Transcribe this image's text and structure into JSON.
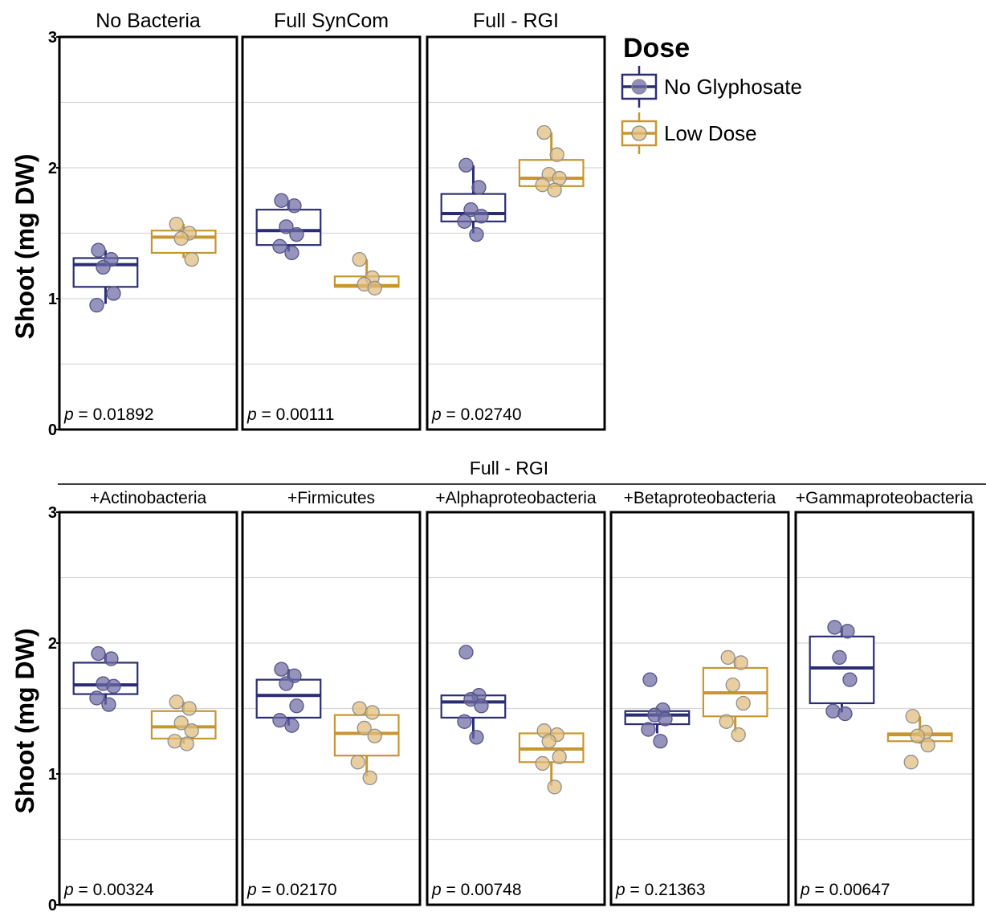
{
  "chart_data": [
    {
      "type": "box",
      "ylabel": "Shoot (mg DW)",
      "yticks": [
        "0",
        "1",
        "2",
        "3"
      ],
      "ylim": [
        0,
        3
      ],
      "grid": true,
      "panel_group_title": "",
      "legend": {
        "title": "Dose",
        "placement": "right",
        "entries": [
          {
            "name": "No Glyphosate",
            "color": "#2b2d74"
          },
          {
            "name": "Low Dose",
            "color": "#c8962e"
          }
        ]
      },
      "panels": [
        {
          "title": "No Bacteria",
          "p_label": "p",
          "p_text": " = 0.01892",
          "groups": [
            {
              "dose": "No Glyphosate",
              "color": "#2b2d74",
              "fill": "#6d6aa3",
              "box": {
                "whisker_low": 0.96,
                "q1": 1.09,
                "median": 1.26,
                "q3": 1.31,
                "whisker_high": 1.37
              },
              "points": [
                1.37,
                1.3,
                1.24,
                1.04,
                0.95
              ]
            },
            {
              "dose": "Low Dose",
              "color": "#c8962e",
              "fill": "#e1bd7b",
              "box": {
                "whisker_low": 1.31,
                "q1": 1.35,
                "median": 1.47,
                "q3": 1.52,
                "whisker_high": 1.57
              },
              "points": [
                1.57,
                1.5,
                1.46,
                1.3
              ]
            }
          ]
        },
        {
          "title": "Full SynCom",
          "p_label": "p",
          "p_text": " = 0.00111",
          "groups": [
            {
              "dose": "No Glyphosate",
              "color": "#2b2d74",
              "fill": "#6d6aa3",
              "box": {
                "whisker_low": 1.36,
                "q1": 1.41,
                "median": 1.52,
                "q3": 1.68,
                "whisker_high": 1.75
              },
              "points": [
                1.75,
                1.71,
                1.55,
                1.49,
                1.4,
                1.35
              ]
            },
            {
              "dose": "Low Dose",
              "color": "#c8962e",
              "fill": "#e1bd7b",
              "box": {
                "whisker_low": 1.09,
                "q1": 1.09,
                "median": 1.1,
                "q3": 1.17,
                "whisker_high": 1.3
              },
              "points": [
                1.3,
                1.16,
                1.11,
                1.08
              ]
            }
          ]
        },
        {
          "title": "Full - RGI",
          "p_label": "p",
          "p_text": " = 0.02740",
          "groups": [
            {
              "dose": "No Glyphosate",
              "color": "#2b2d74",
              "fill": "#6d6aa3",
              "box": {
                "whisker_low": 1.5,
                "q1": 1.59,
                "median": 1.65,
                "q3": 1.8,
                "whisker_high": 2.02
              },
              "points": [
                2.02,
                1.85,
                1.68,
                1.63,
                1.59,
                1.49
              ]
            },
            {
              "dose": "Low Dose",
              "color": "#c8962e",
              "fill": "#e1bd7b",
              "box": {
                "whisker_low": 1.84,
                "q1": 1.86,
                "median": 1.92,
                "q3": 2.06,
                "whisker_high": 2.27
              },
              "points": [
                2.27,
                2.1,
                1.95,
                1.92,
                1.87,
                1.83
              ]
            }
          ]
        }
      ]
    },
    {
      "type": "box",
      "ylabel": "Shoot (mg DW)",
      "yticks": [
        "0",
        "1",
        "2",
        "3"
      ],
      "ylim": [
        0,
        3
      ],
      "grid": true,
      "panel_group_title": "Full - RGI",
      "panels": [
        {
          "title": "+Actinobacteria",
          "p_label": "p",
          "p_text": " = 0.00324",
          "groups": [
            {
              "dose": "No Glyphosate",
              "color": "#2b2d74",
              "fill": "#6d6aa3",
              "box": {
                "whisker_low": 1.53,
                "q1": 1.61,
                "median": 1.68,
                "q3": 1.85,
                "whisker_high": 1.92
              },
              "points": [
                1.92,
                1.88,
                1.69,
                1.67,
                1.58,
                1.53
              ]
            },
            {
              "dose": "Low Dose",
              "color": "#c8962e",
              "fill": "#e1bd7b",
              "box": {
                "whisker_low": 1.23,
                "q1": 1.27,
                "median": 1.36,
                "q3": 1.48,
                "whisker_high": 1.55
              },
              "points": [
                1.55,
                1.5,
                1.39,
                1.33,
                1.25,
                1.23
              ]
            }
          ]
        },
        {
          "title": "+Firmicutes",
          "p_label": "p",
          "p_text": " = 0.02170",
          "groups": [
            {
              "dose": "No Glyphosate",
              "color": "#2b2d74",
              "fill": "#6d6aa3",
              "box": {
                "whisker_low": 1.37,
                "q1": 1.43,
                "median": 1.6,
                "q3": 1.72,
                "whisker_high": 1.8
              },
              "points": [
                1.8,
                1.75,
                1.69,
                1.52,
                1.41,
                1.37
              ]
            },
            {
              "dose": "Low Dose",
              "color": "#c8962e",
              "fill": "#e1bd7b",
              "box": {
                "whisker_low": 0.98,
                "q1": 1.14,
                "median": 1.31,
                "q3": 1.45,
                "whisker_high": 1.5
              },
              "points": [
                1.5,
                1.47,
                1.35,
                1.29,
                1.09,
                0.97
              ]
            }
          ]
        },
        {
          "title": "+Alphaproteobacteria",
          "p_label": "p",
          "p_text": " = 0.00748",
          "groups": [
            {
              "dose": "No Glyphosate",
              "color": "#2b2d74",
              "fill": "#6d6aa3",
              "box": {
                "whisker_low": 1.27,
                "q1": 1.43,
                "median": 1.55,
                "q3": 1.6,
                "whisker_high": 1.62
              },
              "points": [
                1.93,
                1.6,
                1.57,
                1.52,
                1.4,
                1.28
              ]
            },
            {
              "dose": "Low Dose",
              "color": "#c8962e",
              "fill": "#e1bd7b",
              "box": {
                "whisker_low": 0.91,
                "q1": 1.09,
                "median": 1.19,
                "q3": 1.31,
                "whisker_high": 1.33
              },
              "points": [
                1.33,
                1.3,
                1.25,
                1.13,
                1.08,
                0.9
              ]
            }
          ]
        },
        {
          "title": "+Betaproteobacteria",
          "p_label": "p",
          "p_text": " = 0.21363",
          "groups": [
            {
              "dose": "No Glyphosate",
              "color": "#2b2d74",
              "fill": "#6d6aa3",
              "box": {
                "whisker_low": 1.31,
                "q1": 1.38,
                "median": 1.45,
                "q3": 1.48,
                "whisker_high": 1.5
              },
              "points": [
                1.72,
                1.49,
                1.45,
                1.42,
                1.34,
                1.25
              ]
            },
            {
              "dose": "Low Dose",
              "color": "#c8962e",
              "fill": "#e1bd7b",
              "box": {
                "whisker_low": 1.32,
                "q1": 1.44,
                "median": 1.62,
                "q3": 1.81,
                "whisker_high": 1.89
              },
              "points": [
                1.89,
                1.85,
                1.68,
                1.54,
                1.4,
                1.3
              ]
            }
          ]
        },
        {
          "title": "+Gammaproteobacteria",
          "p_label": "p",
          "p_text": " = 0.00647",
          "groups": [
            {
              "dose": "No Glyphosate",
              "color": "#2b2d74",
              "fill": "#6d6aa3",
              "box": {
                "whisker_low": 1.47,
                "q1": 1.54,
                "median": 1.81,
                "q3": 2.05,
                "whisker_high": 2.12
              },
              "points": [
                2.12,
                2.09,
                1.89,
                1.72,
                1.48,
                1.46
              ]
            },
            {
              "dose": "Low Dose",
              "color": "#c8962e",
              "fill": "#e1bd7b",
              "box": {
                "whisker_low": 1.23,
                "q1": 1.25,
                "median": 1.3,
                "q3": 1.31,
                "whisker_high": 1.44
              },
              "points": [
                1.44,
                1.32,
                1.29,
                1.22,
                1.09
              ]
            }
          ]
        }
      ]
    }
  ]
}
